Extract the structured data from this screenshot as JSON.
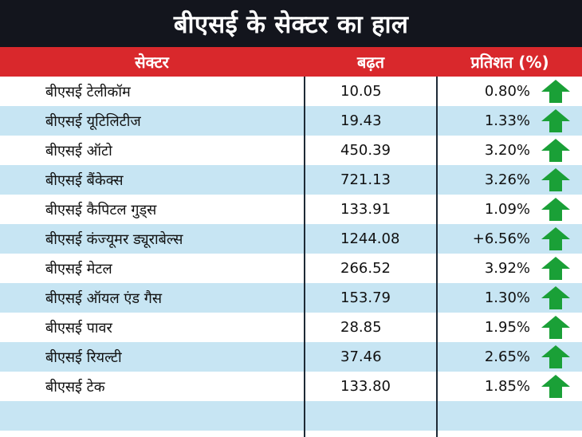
{
  "title": "बीएसई के सेक्टर का हाल",
  "headers": {
    "sector": "सेक्टर",
    "gain": "बढ़त",
    "percent": "प्रतिशत (%)"
  },
  "colors": {
    "title_bg": "#13151d",
    "header_bg": "#d9282c",
    "stripe": "#c7e5f3",
    "arrow_up": "#1aa037"
  },
  "rows": [
    {
      "name": "बीएसई टेलीकॉम",
      "gain": "10.05",
      "percent": "0.80%",
      "trend": "up-arrow-icon"
    },
    {
      "name": "बीएसई यूटिलिटीज",
      "gain": "19.43",
      "percent": "1.33%",
      "trend": "up-arrow-icon"
    },
    {
      "name": "बीएसई ऑटो",
      "gain": "450.39",
      "percent": "3.20%",
      "trend": "up-arrow-icon"
    },
    {
      "name": "बीएसई बैंकेक्स",
      "gain": "721.13",
      "percent": "3.26%",
      "trend": "up-arrow-icon"
    },
    {
      "name": "बीएसई कैपिटल गुड्स",
      "gain": "133.91",
      "percent": "1.09%",
      "trend": "up-arrow-icon"
    },
    {
      "name": "बीएसई कंज्यूमर ड्यूराबेल्स",
      "gain": "1244.08",
      "percent": "+6.56%",
      "trend": "up-arrow-icon"
    },
    {
      "name": "बीएसई मेटल",
      "gain": "266.52",
      "percent": "3.92%",
      "trend": "up-arrow-icon"
    },
    {
      "name": "बीएसई ऑयल एंड गैस",
      "gain": "153.79",
      "percent": "1.30%",
      "trend": "up-arrow-icon"
    },
    {
      "name": "बीएसई पावर",
      "gain": "28.85",
      "percent": "1.95%",
      "trend": "up-arrow-icon"
    },
    {
      "name": "बीएसई रियल्टी",
      "gain": "37.46",
      "percent": "2.65%",
      "trend": "up-arrow-icon"
    },
    {
      "name": "बीएसई टेक",
      "gain": "133.80",
      "percent": "1.85%",
      "trend": "up-arrow-icon"
    },
    {
      "name": "",
      "gain": "",
      "percent": "",
      "trend": ""
    }
  ]
}
